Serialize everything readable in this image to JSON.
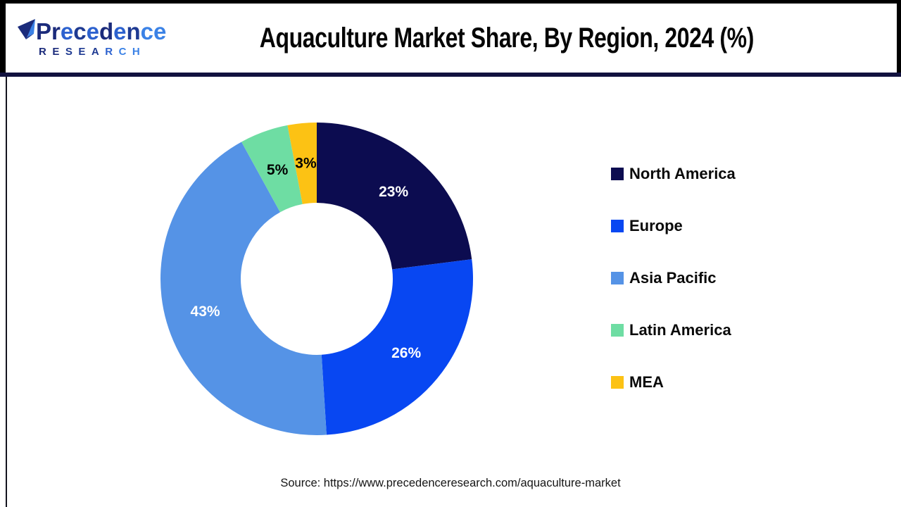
{
  "header": {
    "logo": {
      "icon": "paper-plane",
      "line1": "Precedence",
      "line1_colors": [
        "#1b2b7b",
        "#1b2b7b",
        "#2d62cf",
        "#1e3a92",
        "#2d62cf",
        "#1b2b7b",
        "#2d62cf",
        "#1e3a92",
        "#3b82e6",
        "#3b82e6"
      ],
      "line2": "RESEARCH",
      "line2_colors": [
        "#1b2b7b",
        "#1b2b7b",
        "#1e3a92",
        "#1e3a92",
        "#1e3a92",
        "#2d62cf",
        "#3b82e6",
        "#3b82e6"
      ]
    },
    "title": "Aquaculture Market Share, By Region, 2024 (%)"
  },
  "chart_data": {
    "type": "pie",
    "subtype": "donut",
    "title": "Aquaculture Market Share, By Region, 2024 (%)",
    "unit": "%",
    "categories": [
      "North America",
      "Europe",
      "Asia Pacific",
      "Latin America",
      "MEA"
    ],
    "values": [
      23,
      26,
      43,
      5,
      3
    ],
    "labels": [
      "23%",
      "26%",
      "43%",
      "5%",
      "3%"
    ],
    "colors": [
      "#0c0c50",
      "#0847f2",
      "#5593e6",
      "#6edda3",
      "#fcc214"
    ],
    "label_text_colors": [
      "#ffffff",
      "#ffffff",
      "#ffffff",
      "#000000",
      "#000000"
    ],
    "start_angle_deg": 0,
    "direction": "clockwise",
    "legend_position": "right",
    "inner_radius_ratio": 0.486
  },
  "footer": {
    "source": "Source: https://www.precedenceresearch.com/aquaculture-market"
  },
  "style": {
    "divider_color": "#12123f",
    "border_color": "#000000",
    "background": "#ffffff"
  }
}
